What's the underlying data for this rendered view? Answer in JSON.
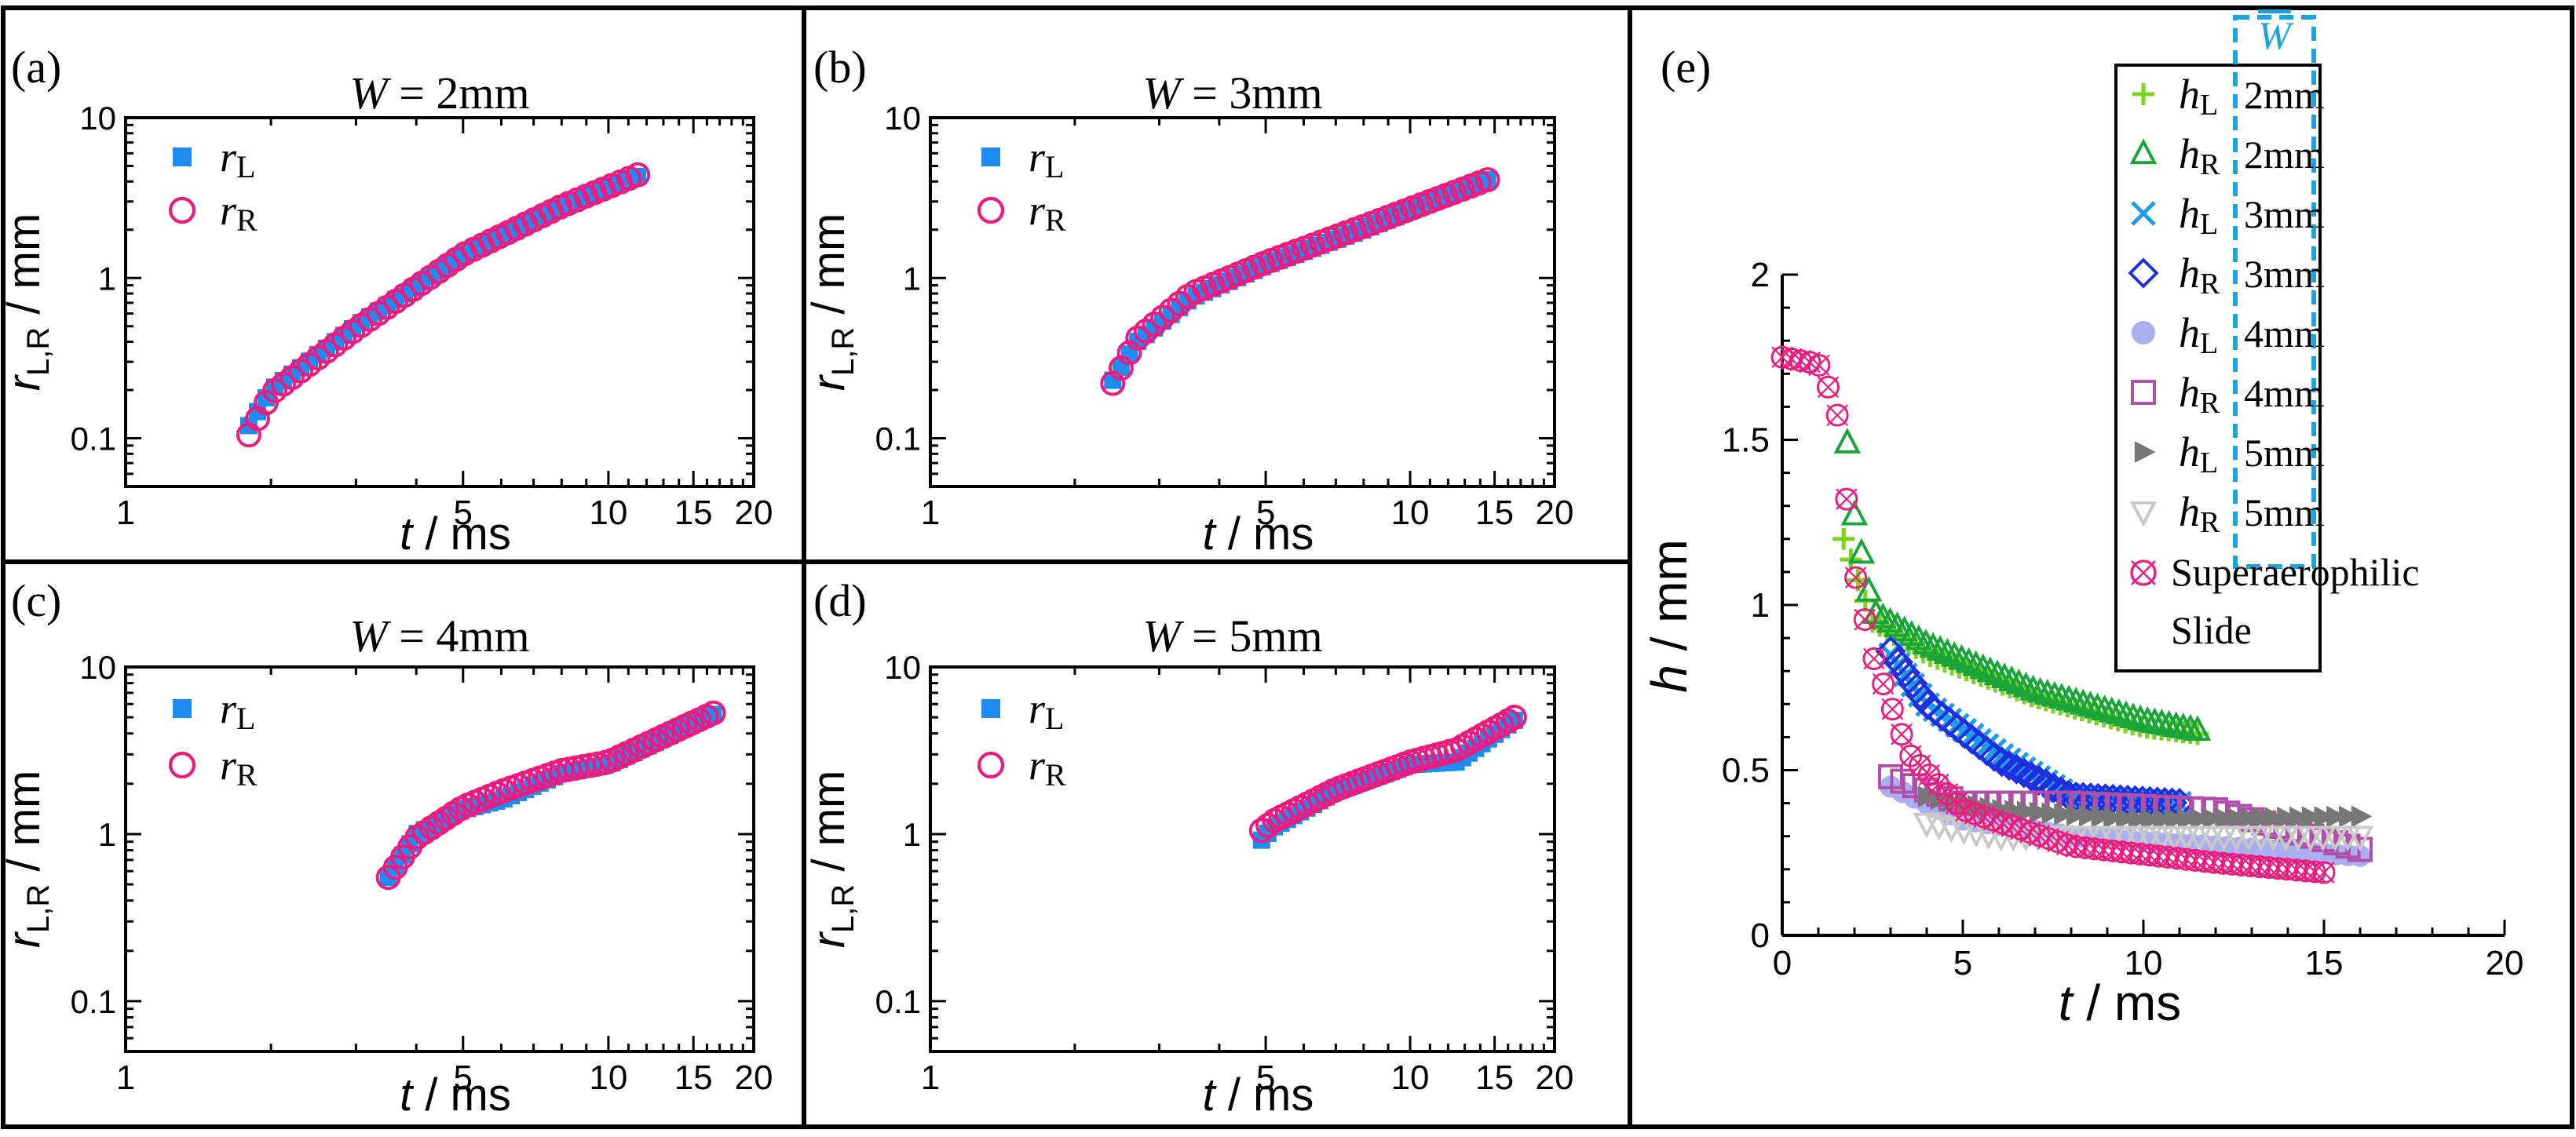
{
  "chart_data": [
    {
      "panel": "(a)",
      "type": "scatter",
      "title": {
        "var": "W",
        "text": " = 2mm"
      },
      "xlabel": {
        "var": "t",
        "text": " / ms"
      },
      "ylabel": "r L,R / mm",
      "xscale": "log",
      "yscale": "log",
      "xlim": [
        1,
        20
      ],
      "ylim": [
        0.05,
        10
      ],
      "xticks": [
        "1",
        "5",
        "10",
        "15",
        "20"
      ],
      "yticks": [
        "0.1",
        "1",
        "10"
      ],
      "legend": [
        {
          "var": "r",
          "sub": "L",
          "marker": "square-filled",
          "color": "#1e8cf0"
        },
        {
          "var": "r",
          "sub": "R",
          "marker": "circle-open",
          "color": "#ee1b7f"
        }
      ],
      "series": [
        {
          "name": "rL",
          "marker": "square-filled",
          "color": "#1e8cf0",
          "t_start": 1.8,
          "t_end": 11.5,
          "r_start": 0.12,
          "r_end": 4.3,
          "anchors_t": [
            1.8,
            2.0,
            3.0,
            5.0,
            8.0,
            11.5
          ],
          "anchors_r": [
            0.12,
            0.2,
            0.5,
            1.4,
            2.8,
            4.3
          ],
          "n": 46
        },
        {
          "name": "rR",
          "marker": "circle-open",
          "color": "#ee1b7f",
          "t_start": 1.8,
          "t_end": 11.5,
          "r_start": 0.105,
          "r_end": 4.4,
          "anchors_t": [
            1.8,
            2.0,
            3.0,
            5.0,
            8.0,
            11.5
          ],
          "anchors_r": [
            0.105,
            0.19,
            0.48,
            1.4,
            2.8,
            4.4
          ],
          "n": 46
        }
      ]
    },
    {
      "panel": "(b)",
      "type": "scatter",
      "title": {
        "var": "W",
        "text": " = 3mm"
      },
      "xlabel": {
        "var": "t",
        "text": " / ms"
      },
      "ylabel": "r L,R / mm",
      "xscale": "log",
      "yscale": "log",
      "xlim": [
        1,
        20
      ],
      "ylim": [
        0.05,
        10
      ],
      "xticks": [
        "1",
        "5",
        "10",
        "15",
        "20"
      ],
      "yticks": [
        "0.1",
        "1",
        "10"
      ],
      "legend": [
        {
          "var": "r",
          "sub": "L",
          "marker": "square-filled",
          "color": "#1e8cf0"
        },
        {
          "var": "r",
          "sub": "R",
          "marker": "circle-open",
          "color": "#ee1b7f"
        }
      ],
      "series": [
        {
          "name": "rL",
          "marker": "square-filled",
          "color": "#1e8cf0",
          "anchors_t": [
            2.4,
            2.7,
            3.5,
            5.0,
            8.0,
            14.5
          ],
          "anchors_r": [
            0.23,
            0.4,
            0.75,
            1.2,
            2.0,
            4.1
          ],
          "n": 46
        },
        {
          "name": "rR",
          "marker": "circle-open",
          "color": "#ee1b7f",
          "anchors_t": [
            2.4,
            2.7,
            3.5,
            5.0,
            8.0,
            14.5
          ],
          "anchors_r": [
            0.22,
            0.42,
            0.8,
            1.25,
            2.1,
            4.1
          ],
          "n": 46
        }
      ]
    },
    {
      "panel": "(c)",
      "type": "scatter",
      "title": {
        "var": "W",
        "text": " = 4mm"
      },
      "xlabel": {
        "var": "t",
        "text": " / ms"
      },
      "ylabel": "r L,R / mm",
      "xscale": "log",
      "yscale": "log",
      "xlim": [
        1,
        20
      ],
      "ylim": [
        0.05,
        10
      ],
      "xticks": [
        "1",
        "5",
        "10",
        "15",
        "20"
      ],
      "yticks": [
        "0.1",
        "1",
        "10"
      ],
      "legend": [
        {
          "var": "r",
          "sub": "L",
          "marker": "square-filled",
          "color": "#1e8cf0"
        },
        {
          "var": "r",
          "sub": "R",
          "marker": "circle-open",
          "color": "#ee1b7f"
        }
      ],
      "series": [
        {
          "name": "rL",
          "marker": "square-filled",
          "color": "#1e8cf0",
          "anchors_t": [
            3.5,
            4.0,
            5.0,
            6.0,
            8.0,
            10.0,
            16.5
          ],
          "anchors_r": [
            0.55,
            1.0,
            1.4,
            1.6,
            2.3,
            2.6,
            5.2
          ],
          "n": 46
        },
        {
          "name": "rR",
          "marker": "circle-open",
          "color": "#ee1b7f",
          "anchors_t": [
            3.5,
            4.0,
            5.0,
            6.0,
            8.0,
            10.0,
            16.5
          ],
          "anchors_r": [
            0.55,
            0.95,
            1.45,
            1.8,
            2.4,
            2.7,
            5.3
          ],
          "n": 46
        }
      ]
    },
    {
      "panel": "(d)",
      "type": "scatter",
      "title": {
        "var": "W",
        "text": " = 5mm"
      },
      "xlabel": {
        "var": "t",
        "text": " / ms"
      },
      "ylabel": "r L,R / mm",
      "xscale": "log",
      "yscale": "log",
      "xlim": [
        1,
        20
      ],
      "ylim": [
        0.05,
        10
      ],
      "xticks": [
        "1",
        "5",
        "10",
        "15",
        "20"
      ],
      "yticks": [
        "0.1",
        "1",
        "10"
      ],
      "legend": [
        {
          "var": "r",
          "sub": "L",
          "marker": "square-filled",
          "color": "#1e8cf0"
        },
        {
          "var": "r",
          "sub": "R",
          "marker": "circle-open",
          "color": "#ee1b7f"
        }
      ],
      "series": [
        {
          "name": "rL",
          "marker": "square-filled",
          "color": "#1e8cf0",
          "anchors_t": [
            4.9,
            5.2,
            7.0,
            10.0,
            12.5,
            16.5
          ],
          "anchors_r": [
            0.92,
            1.1,
            1.8,
            2.6,
            2.7,
            4.8
          ],
          "n": 40
        },
        {
          "name": "rR",
          "marker": "circle-open",
          "color": "#ee1b7f",
          "anchors_t": [
            4.9,
            5.2,
            7.0,
            10.0,
            12.5,
            16.5
          ],
          "anchors_r": [
            1.05,
            1.2,
            1.85,
            2.7,
            3.2,
            5.0
          ],
          "n": 40
        }
      ]
    },
    {
      "panel": "(e)",
      "type": "scatter",
      "xlabel": {
        "var": "t",
        "text": " / ms"
      },
      "ylabel": {
        "var": "h",
        "text": " / mm"
      },
      "xscale": "linear",
      "yscale": "linear",
      "xlim": [
        0,
        20
      ],
      "ylim": [
        0,
        2
      ],
      "xticks": [
        "0",
        "5",
        "10",
        "15",
        "20"
      ],
      "yticks": [
        "0",
        "0.5",
        "1",
        "1.5",
        "2"
      ],
      "legend_header": "W",
      "legend": [
        {
          "var": "h",
          "sub": "L",
          "value": "2mm",
          "marker": "plus",
          "color": "#7ed321"
        },
        {
          "var": "h",
          "sub": "R",
          "value": "2mm",
          "marker": "triangle-open",
          "color": "#1aa53a"
        },
        {
          "var": "h",
          "sub": "L",
          "value": "3mm",
          "marker": "x",
          "color": "#1e9de6"
        },
        {
          "var": "h",
          "sub": "R",
          "value": "3mm",
          "marker": "diamond-open",
          "color": "#1f2fe0"
        },
        {
          "var": "h",
          "sub": "L",
          "value": "4mm",
          "marker": "circle-filled",
          "color": "#a9aef0"
        },
        {
          "var": "h",
          "sub": "R",
          "value": "4mm",
          "marker": "square-open",
          "color": "#b04fa8"
        },
        {
          "var": "h",
          "sub": "L",
          "value": "5mm",
          "marker": "triangle-right-filled",
          "color": "#777777"
        },
        {
          "var": "h",
          "sub": "R",
          "value": "5mm",
          "marker": "triangle-down-open",
          "color": "#c8c8c8"
        },
        {
          "text": "Superaerophilic Slide",
          "marker": "circle-x",
          "color": "#ee1b7f"
        }
      ],
      "series": [
        {
          "name": "hL 2mm",
          "marker": "plus",
          "color": "#7ed321",
          "anchors_t": [
            1.7,
            2.5,
            4.0,
            7.0,
            10.0,
            11.5
          ],
          "anchors_h": [
            1.2,
            0.95,
            0.85,
            0.72,
            0.63,
            0.61
          ],
          "n": 50
        },
        {
          "name": "hR 2mm",
          "marker": "triangle-open",
          "color": "#1aa53a",
          "anchors_t": [
            1.8,
            2.0,
            2.5,
            4.0,
            7.0,
            10.0,
            11.5
          ],
          "anchors_h": [
            1.49,
            1.27,
            0.98,
            0.88,
            0.74,
            0.65,
            0.62
          ],
          "n": 50
        },
        {
          "name": "hL 3mm",
          "marker": "x",
          "color": "#1e9de6",
          "anchors_t": [
            3.0,
            4.0,
            6.0,
            8.0,
            11.0
          ],
          "anchors_h": [
            0.85,
            0.7,
            0.55,
            0.42,
            0.4
          ],
          "n": 40
        },
        {
          "name": "hR 3mm",
          "marker": "diamond-open",
          "color": "#1f2fe0",
          "anchors_t": [
            3.0,
            4.0,
            6.0,
            8.0,
            11.0
          ],
          "anchors_h": [
            0.86,
            0.7,
            0.53,
            0.42,
            0.4
          ],
          "n": 40
        },
        {
          "name": "hL 4mm",
          "marker": "circle-filled",
          "color": "#a9aef0",
          "anchors_t": [
            3.0,
            5.0,
            8.0,
            12.0,
            16.0
          ],
          "anchors_h": [
            0.45,
            0.35,
            0.3,
            0.27,
            0.24
          ],
          "n": 40
        },
        {
          "name": "hR 4mm",
          "marker": "square-open",
          "color": "#b04fa8",
          "anchors_t": [
            3.0,
            5.0,
            8.0,
            12.0,
            16.0
          ],
          "anchors_h": [
            0.48,
            0.4,
            0.4,
            0.38,
            0.26
          ],
          "n": 40
        },
        {
          "name": "hL 5mm",
          "marker": "triangle-right-filled",
          "color": "#777777",
          "anchors_t": [
            4.0,
            6.0,
            10.0,
            16.0
          ],
          "anchors_h": [
            0.42,
            0.38,
            0.35,
            0.36
          ],
          "n": 36
        },
        {
          "name": "hR 5mm",
          "marker": "triangle-down-open",
          "color": "#c8c8c8",
          "anchors_t": [
            4.0,
            6.0,
            10.0,
            16.0
          ],
          "anchors_h": [
            0.34,
            0.3,
            0.3,
            0.3
          ],
          "n": 36
        },
        {
          "name": "Superaerophilic Slide",
          "marker": "circle-x",
          "color": "#ee1b7f",
          "anchors_t": [
            0.0,
            1.0,
            1.5,
            2.0,
            2.5,
            3.5,
            5.0,
            8.0,
            12.0,
            15.0
          ],
          "anchors_h": [
            1.75,
            1.73,
            1.6,
            1.1,
            0.85,
            0.55,
            0.38,
            0.27,
            0.22,
            0.19
          ],
          "n": 60
        }
      ]
    }
  ]
}
